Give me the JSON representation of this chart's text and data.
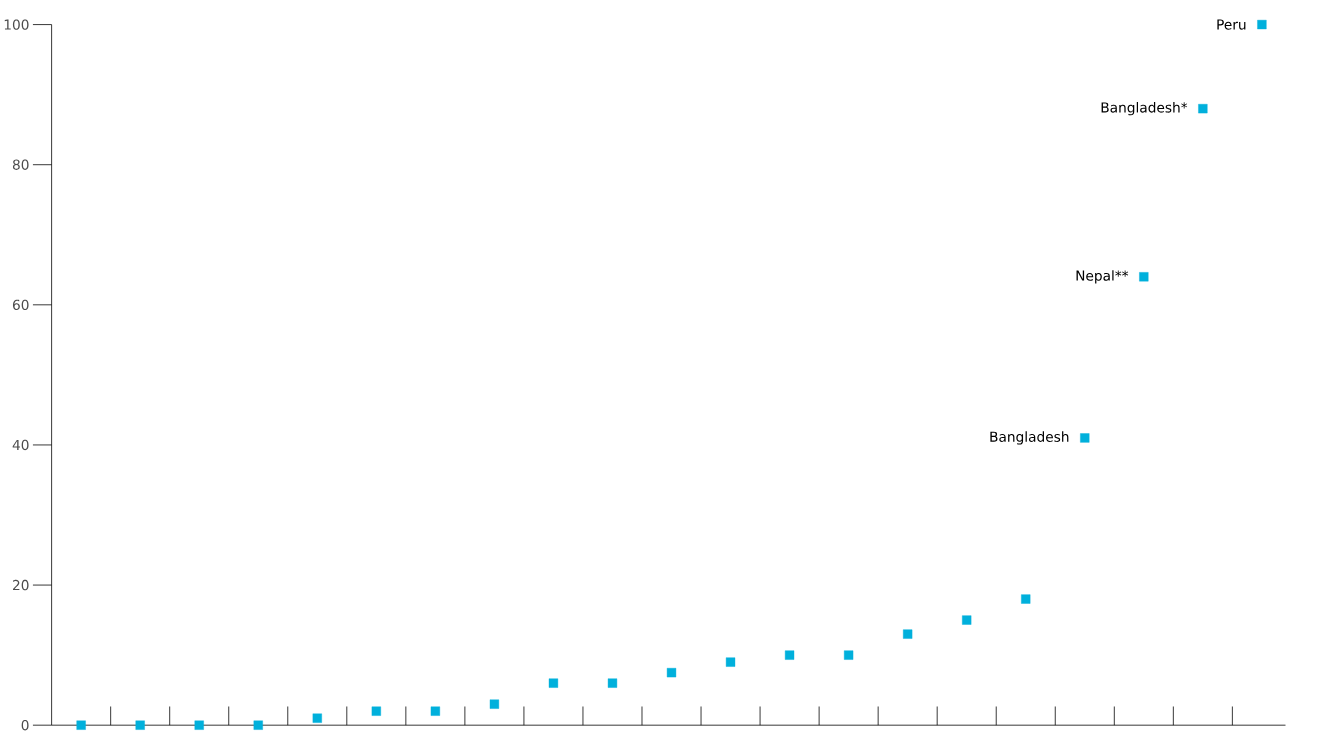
{
  "chart_data": {
    "type": "scatter",
    "categories": [
      null,
      null,
      null,
      null,
      null,
      null,
      null,
      null,
      null,
      null,
      null,
      null,
      null,
      null,
      null,
      null,
      null,
      null,
      null,
      null,
      null
    ],
    "values": [
      0,
      0,
      0,
      0,
      1,
      2,
      2,
      3,
      6,
      6,
      7.5,
      9,
      10,
      10,
      13,
      15,
      18,
      41,
      64,
      88,
      100
    ],
    "color": "#00b0dc",
    "marker": "square",
    "ylim": [
      0,
      100
    ],
    "yticks": [
      0,
      20,
      40,
      60,
      80,
      100
    ],
    "tick_labels": "y",
    "annotations": [
      "Peru",
      "Bangladesh*",
      "Nepal**",
      "Bangladesh"
    ]
  }
}
